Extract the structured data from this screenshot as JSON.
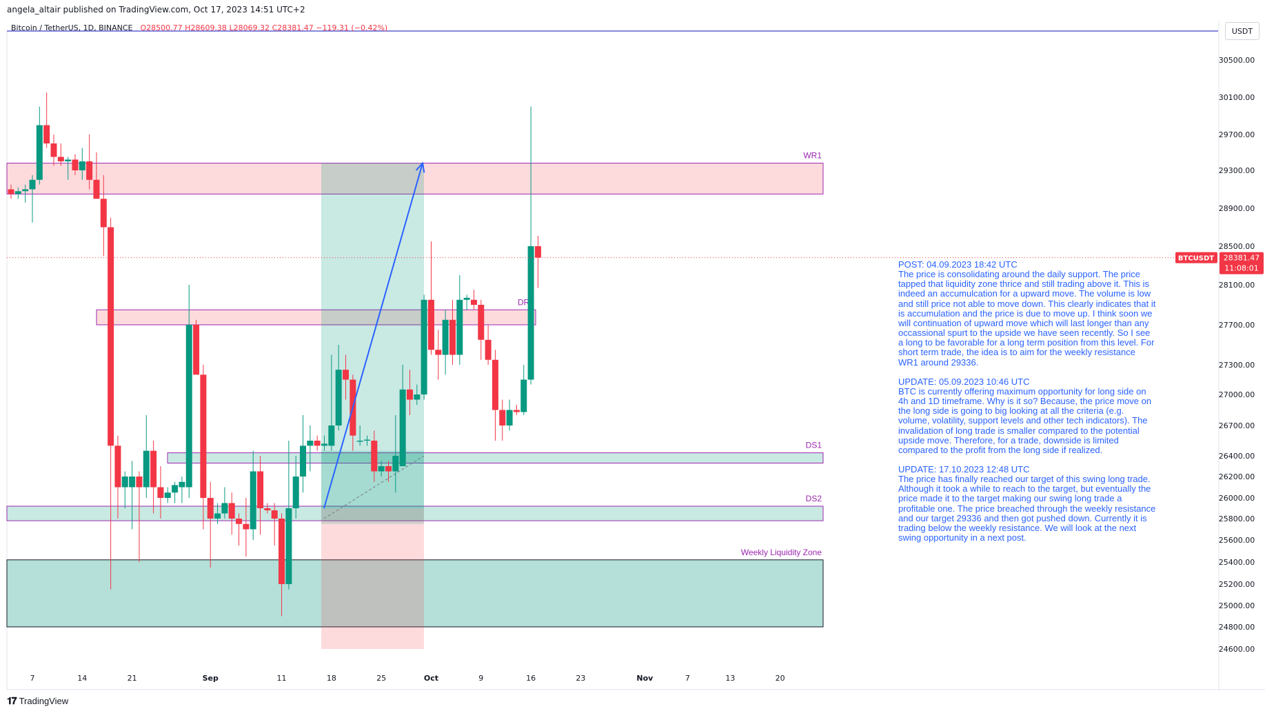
{
  "header": {
    "published": "angela_altair published on TradingView.com, Oct 17, 2023 14:51 UTC+2"
  },
  "legend": {
    "symbol": "Bitcoin / TetherUS, 1D, BINANCE",
    "open": "O28500.77",
    "high": "H28609.38",
    "low": "L28069.32",
    "close": "C28381.47",
    "change": "−119.31 (−0.42%)"
  },
  "currency_button": "USDT",
  "price_tag": {
    "symbol": "BTCUSDT",
    "price": "28381.47",
    "countdown": "11:08:01"
  },
  "footer": {
    "brand": "TradingView",
    "brand_icon": "tradingview-logo-icon"
  },
  "colors": {
    "up": "#089981",
    "down": "#f23645",
    "accent": "#2962ff",
    "zone_label": "#9c27b0"
  },
  "note": {
    "blocks": [
      {
        "title": "POST: 04.09.2023 18:42 UTC",
        "body": "The price is consolidating around the daily support. The price tapped that liquidity zone thrice and still trading above it. This is indeed an accumulcation for a upward move. The volume is low and still price not able to move down. This clearly indicates that it is accumulation and the price is due to move up. I think soon we will continuation of upward move which will last longer than any occassional spurt to the upside we have seen recently. So I see a long to be favorable for a long term position from this level. For short term trade, the idea is to aim for the weekly resistance WR1 around 29336."
      },
      {
        "title": "UPDATE: 05.09.2023 10:46 UTC",
        "body": "BTC is currently offering maximum opportunity for long side on 4h and 1D timeframe. Why is it so? Because, the price move on the long side is going to big looking at all the criteria (e.g. volume, volatility, support levels and other tech indicators). The invalidation of long trade is smaller compared to the potential upside move. Therefore, for a trade, downside is limited compared to the profit from the long side if realized."
      },
      {
        "title": "UPDATE: 17.10.2023 12:48 UTC",
        "body": "The price has finally reached our target of this swing long trade. Although it took a while to reach to the target, but eventually the price made it to the target making our swing long trade a profitable one. The price breached through the weekly resistance and our target 29336 and then got pushed down. Currently it is trading below the weekly resistance. We will look at the next swing opportunity in a next post."
      }
    ]
  },
  "chart_data": {
    "type": "candlestick",
    "symbol": "BTCUSDT",
    "timeframe": "1D",
    "ylim": [
      24400,
      30800
    ],
    "y_ticks": [
      24600,
      24800,
      25000,
      25200,
      25400,
      25600,
      25800,
      26000,
      26200,
      26400,
      26700,
      27000,
      27300,
      27700,
      28100,
      28500,
      28900,
      29300,
      29700,
      30100,
      30500
    ],
    "x_labels": [
      {
        "label": "7",
        "day": "2023-08-07"
      },
      {
        "label": "14",
        "day": "2023-08-14"
      },
      {
        "label": "21",
        "day": "2023-08-21"
      },
      {
        "label": "Sep",
        "day": "2023-09-01"
      },
      {
        "label": "11",
        "day": "2023-09-11"
      },
      {
        "label": "18",
        "day": "2023-09-18"
      },
      {
        "label": "25",
        "day": "2023-09-25"
      },
      {
        "label": "Oct",
        "day": "2023-10-02"
      },
      {
        "label": "9",
        "day": "2023-10-09"
      },
      {
        "label": "16",
        "day": "2023-10-16"
      },
      {
        "label": "23",
        "day": "2023-10-23"
      },
      {
        "label": "Nov",
        "day": "2023-11-01"
      },
      {
        "label": "7",
        "day": "2023-11-07"
      },
      {
        "label": "13",
        "day": "2023-11-13"
      },
      {
        "label": "20",
        "day": "2023-11-20"
      }
    ],
    "first_date": "2023-08-04",
    "candles": [
      [
        "2023-08-04",
        29100,
        29150,
        29000,
        29050
      ],
      [
        "2023-08-05",
        29050,
        29120,
        29000,
        29080
      ],
      [
        "2023-08-06",
        29080,
        29150,
        28960,
        29100
      ],
      [
        "2023-08-07",
        29100,
        29250,
        28750,
        29200
      ],
      [
        "2023-08-08",
        29200,
        30000,
        29150,
        29800
      ],
      [
        "2023-08-09",
        29800,
        30150,
        29550,
        29600
      ],
      [
        "2023-08-10",
        29600,
        29700,
        29350,
        29450
      ],
      [
        "2023-08-11",
        29450,
        29600,
        29350,
        29400
      ],
      [
        "2023-08-12",
        29400,
        29450,
        29200,
        29420
      ],
      [
        "2023-08-13",
        29420,
        29480,
        29250,
        29300
      ],
      [
        "2023-08-14",
        29300,
        29550,
        29200,
        29400
      ],
      [
        "2023-08-15",
        29400,
        29700,
        29100,
        29200
      ],
      [
        "2023-08-16",
        29200,
        29500,
        29050,
        29000
      ],
      [
        "2023-08-17",
        29000,
        29250,
        28400,
        28700
      ],
      [
        "2023-08-18",
        28700,
        28800,
        25150,
        26500
      ],
      [
        "2023-08-19",
        26500,
        26600,
        25800,
        26100
      ],
      [
        "2023-08-20",
        26100,
        26250,
        25900,
        26200
      ],
      [
        "2023-08-21",
        26100,
        26350,
        25700,
        26200
      ],
      [
        "2023-08-22",
        26200,
        26250,
        25400,
        26100
      ],
      [
        "2023-08-23",
        26100,
        26800,
        26000,
        26450
      ],
      [
        "2023-08-24",
        26450,
        26550,
        25850,
        26100
      ],
      [
        "2023-08-25",
        26100,
        26300,
        25800,
        26000
      ],
      [
        "2023-08-26",
        26000,
        26100,
        25950,
        26050
      ],
      [
        "2023-08-27",
        26050,
        26150,
        25950,
        26120
      ],
      [
        "2023-08-28",
        26100,
        26200,
        25950,
        26150
      ],
      [
        "2023-08-29",
        26100,
        28100,
        26000,
        27700
      ],
      [
        "2023-08-30",
        27700,
        27750,
        27250,
        27200
      ],
      [
        "2023-08-31",
        27200,
        27300,
        25700,
        26000
      ],
      [
        "2023-09-01",
        26000,
        26150,
        25350,
        25800
      ],
      [
        "2023-09-02",
        25800,
        25950,
        25750,
        25850
      ],
      [
        "2023-09-03",
        25850,
        26100,
        25800,
        25950
      ],
      [
        "2023-09-04",
        25950,
        26050,
        25650,
        25800
      ],
      [
        "2023-09-05",
        25800,
        25850,
        25550,
        25750
      ],
      [
        "2023-09-06",
        25750,
        26000,
        25450,
        25700
      ],
      [
        "2023-09-07",
        25700,
        26450,
        25600,
        26250
      ],
      [
        "2023-09-08",
        26250,
        26400,
        25650,
        25900
      ],
      [
        "2023-09-09",
        25900,
        25950,
        25850,
        25880
      ],
      [
        "2023-09-10",
        25880,
        25950,
        25550,
        25800
      ],
      [
        "2023-09-11",
        25800,
        25850,
        24900,
        25200
      ],
      [
        "2023-09-12",
        25200,
        26550,
        25150,
        25900
      ],
      [
        "2023-09-13",
        25900,
        26400,
        25800,
        26200
      ],
      [
        "2023-09-14",
        26200,
        26800,
        26050,
        26500
      ],
      [
        "2023-09-15",
        26500,
        26700,
        26250,
        26550
      ],
      [
        "2023-09-16",
        26550,
        26600,
        26450,
        26500
      ],
      [
        "2023-09-17",
        26500,
        26600,
        26450,
        26520
      ],
      [
        "2023-09-18",
        26500,
        27400,
        26450,
        26700
      ],
      [
        "2023-09-19",
        26700,
        27500,
        26650,
        27250
      ],
      [
        "2023-09-20",
        27250,
        27400,
        26950,
        27150
      ],
      [
        "2023-09-21",
        27150,
        27200,
        26450,
        26600
      ],
      [
        "2023-09-22",
        26550,
        26700,
        26500,
        26550
      ],
      [
        "2023-09-23",
        26550,
        26600,
        26500,
        26560
      ],
      [
        "2023-09-24",
        26550,
        26650,
        26150,
        26250
      ],
      [
        "2023-09-25",
        26250,
        26350,
        26200,
        26300
      ],
      [
        "2023-09-26",
        26300,
        26350,
        26150,
        26250
      ],
      [
        "2023-09-27",
        26250,
        26800,
        26050,
        26400
      ],
      [
        "2023-09-28",
        26300,
        27300,
        26350,
        27050
      ],
      [
        "2023-09-29",
        27050,
        27250,
        26800,
        26950
      ],
      [
        "2023-09-30",
        26950,
        27100,
        26900,
        27000
      ],
      [
        "2023-10-01",
        27000,
        28000,
        26950,
        27950
      ],
      [
        "2023-10-02",
        27950,
        28550,
        27400,
        27450
      ],
      [
        "2023-10-03",
        27450,
        27650,
        27150,
        27400
      ],
      [
        "2023-10-04",
        27400,
        27850,
        27200,
        27750
      ],
      [
        "2023-10-05",
        27750,
        27950,
        27300,
        27400
      ],
      [
        "2023-10-06",
        27400,
        28200,
        27300,
        27950
      ],
      [
        "2023-10-07",
        27950,
        28000,
        27850,
        27970
      ],
      [
        "2023-10-08",
        27950,
        28050,
        27850,
        27900
      ],
      [
        "2023-10-09",
        27900,
        27950,
        27350,
        27550
      ],
      [
        "2023-10-10",
        27550,
        27700,
        27300,
        27350
      ],
      [
        "2023-10-11",
        27350,
        27450,
        26550,
        26850
      ],
      [
        "2023-10-12",
        26850,
        26950,
        26550,
        26700
      ],
      [
        "2023-10-13",
        26700,
        26950,
        26650,
        26850
      ],
      [
        "2023-10-14",
        26850,
        26900,
        26800,
        26830
      ],
      [
        "2023-10-15",
        26830,
        27300,
        26800,
        27150
      ],
      [
        "2023-10-16",
        27150,
        30000,
        27100,
        28500
      ],
      [
        "2023-10-17",
        28500,
        28609.38,
        28069.32,
        28381.47
      ]
    ],
    "zones": [
      {
        "label": "WR1",
        "from": "2023-08-04",
        "to": "2023-10-23",
        "y1": 29050,
        "y2": 29380
      },
      {
        "label": "DR1",
        "from": "2023-08-13",
        "to": "2023-09-25",
        "y1": 27700,
        "y2": 27850
      },
      {
        "label": "DS1",
        "from": "2023-08-20",
        "to": "2023-10-23",
        "y1": 26330,
        "y2": 26430
      },
      {
        "label": "DS2",
        "from": "2023-08-04",
        "to": "2023-10-23",
        "y1": 25780,
        "y2": 25920
      },
      {
        "label": "Weekly Liquidity Zone",
        "from": "2023-08-04",
        "to": "2023-10-23",
        "y1": 24800,
        "y2": 25420
      }
    ],
    "long_position": {
      "from": "2023-09-04",
      "to": "2023-09-13",
      "entry": 25900,
      "target": 29380,
      "stop": 24600
    },
    "projection_arrow": {
      "from_date": "2023-09-04",
      "from_price": 25900,
      "to_date": "2023-09-13",
      "to_price": 29380
    },
    "last_price": 28381.47
  }
}
